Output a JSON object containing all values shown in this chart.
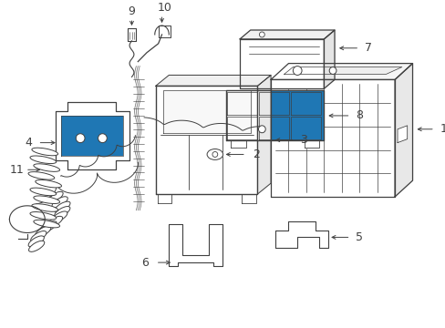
{
  "background_color": "#ffffff",
  "line_color": "#404040",
  "fig_width": 4.89,
  "fig_height": 3.6,
  "dpi": 100
}
